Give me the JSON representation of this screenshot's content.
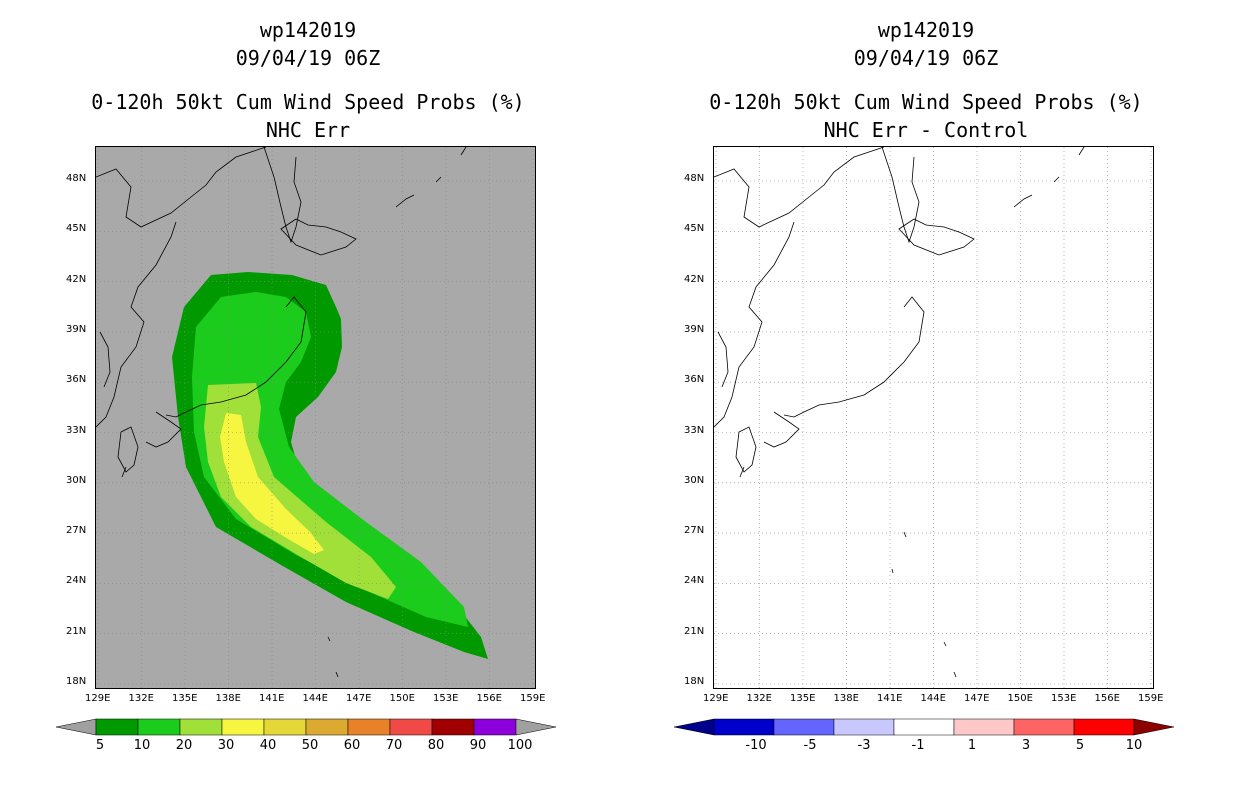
{
  "left_panel": {
    "title_lines": [
      "wp142019",
      "09/04/19 06Z",
      "0-120h 50kt Cum Wind Speed Probs (%)",
      "NHC Err"
    ],
    "background_color": "#a9a9a9",
    "colorbar": {
      "labels": [
        "5",
        "10",
        "20",
        "30",
        "40",
        "50",
        "60",
        "70",
        "80",
        "90",
        "100"
      ],
      "colors": [
        "#009a00",
        "#1ccc1c",
        "#a0e038",
        "#f6f640",
        "#e4d838",
        "#dcaa30",
        "#e88228",
        "#f04a46",
        "#a00000",
        "#8c00dc"
      ],
      "end_color": "#a0a0a0"
    }
  },
  "right_panel": {
    "title_lines": [
      "wp142019",
      "09/04/19 06Z",
      "0-120h 50kt Cum Wind Speed Probs (%)",
      "NHC Err - Control"
    ],
    "background_color": "#ffffff",
    "colorbar": {
      "labels": [
        "-10",
        "-5",
        "-3",
        "-1",
        "1",
        "3",
        "5",
        "10"
      ],
      "colors": [
        "#0000cc",
        "#6464ff",
        "#c8c8ff",
        "#ffffff",
        "#ffc8c8",
        "#ff6464",
        "#ff0000"
      ],
      "low_end_color": "#00008c",
      "high_end_color": "#8c0000"
    }
  },
  "axes": {
    "lat_labels": [
      "48N",
      "45N",
      "42N",
      "39N",
      "36N",
      "33N",
      "30N",
      "27N",
      "24N",
      "21N",
      "18N"
    ],
    "lon_labels": [
      "129E",
      "132E",
      "135E",
      "138E",
      "141E",
      "144E",
      "147E",
      "150E",
      "153E",
      "156E",
      "159E"
    ]
  },
  "prob_levels": {
    "outer_5": "#009a00",
    "band_10": "#1ccc1c",
    "band_20": "#a0e038",
    "core_30": "#f6f640"
  }
}
